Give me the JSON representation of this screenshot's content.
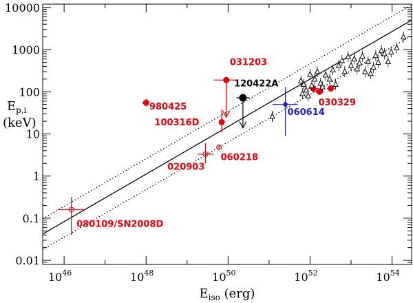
{
  "chart_data": {
    "type": "scatter",
    "x_scale": "log",
    "y_scale": "log",
    "xlim": [
      3e+45,
      3e+54
    ],
    "ylim": [
      0.008,
      12000
    ],
    "x_ticks": [
      {
        "base": "10",
        "exp": "46",
        "value": 1e+46
      },
      {
        "base": "10",
        "exp": "48",
        "value": 1e+48
      },
      {
        "base": "10",
        "exp": "50",
        "value": 1e+50
      },
      {
        "base": "10",
        "exp": "52",
        "value": 1e+52
      },
      {
        "base": "10",
        "exp": "54",
        "value": 1e+54
      }
    ],
    "y_ticks": [
      {
        "label": "0.01",
        "value": 0.01
      },
      {
        "label": "0.1",
        "value": 0.1
      },
      {
        "label": "1",
        "value": 1
      },
      {
        "label": "10",
        "value": 10
      },
      {
        "label": "100",
        "value": 100
      },
      {
        "label": "1000",
        "value": 1000
      },
      {
        "label": "10000",
        "value": 10000
      }
    ],
    "xlabel": {
      "main": "E",
      "sub": "iso",
      "unit": " (erg)"
    },
    "ylabel": {
      "main": "E",
      "sub": "p,i",
      "unit": "(keV)"
    },
    "colors": {
      "red": "#e8000b",
      "black": "#000000",
      "blue": "#2020c8"
    },
    "relation_lines": [
      {
        "style": "solid",
        "points": [
          [
            3e+45,
            0.042
          ],
          [
            3e+54,
            5000
          ]
        ]
      },
      {
        "style": "dotted",
        "points": [
          [
            3e+45,
            0.097
          ],
          [
            3e+54,
            11500
          ]
        ]
      },
      {
        "style": "dotted",
        "points": [
          [
            3e+45,
            0.018
          ],
          [
            3e+54,
            2150
          ]
        ]
      }
    ],
    "series": [
      {
        "color": "red",
        "points": [
          {
            "label": "980425",
            "x": 1e+48,
            "y": 55,
            "xerr": [
              8e+47,
              1.2e+48
            ],
            "yerr": [
              45,
              68
            ],
            "marker": "filled-circle"
          },
          {
            "label": "031203",
            "x": 9e+49,
            "y": 190,
            "xerr": [
              4.5e+49,
              1.8e+50
            ],
            "yerr": null,
            "upper_limit": 25,
            "marker": "filled-circle"
          },
          {
            "label": "100316D",
            "x": 7e+49,
            "y": 19,
            "xerr": null,
            "yerr": [
              11,
              38
            ],
            "marker": "filled-circle"
          },
          {
            "label": "020903",
            "x": 2.8e+49,
            "y": 3.3,
            "xerr": [
              1.8e+49,
              4.5e+49
            ],
            "yerr": [
              2.0,
              6.0
            ],
            "marker": "open-circle"
          },
          {
            "label": "060218",
            "x": 6e+49,
            "y": 4.8,
            "xerr": null,
            "yerr": [
              4.2,
              5.6
            ],
            "marker": "open-circle"
          },
          {
            "label": "080109/SN2008D",
            "x": 1.5e+46,
            "y": 0.16,
            "xerr": [
              7e+45,
              3.2e+46
            ],
            "yerr": [
              0.04,
              0.32
            ],
            "marker": "open-circle"
          },
          {
            "label": "030329",
            "x": 1.7e+52,
            "y": 100,
            "xerr": [
              1.3e+52,
              2.2e+52
            ],
            "yerr": [
              83,
              120
            ],
            "marker": "filled-circle"
          },
          {
            "label": "",
            "x": 1.2e+52,
            "y": 120,
            "xerr": [
              9e+51,
              1.6e+52
            ],
            "yerr": [
              95,
              150
            ],
            "marker": "filled-circle"
          },
          {
            "label": "",
            "x": 3.2e+52,
            "y": 120,
            "xerr": [
              2.6e+52,
              4e+52
            ],
            "yerr": [
              100,
              145
            ],
            "marker": "filled-circle"
          }
        ]
      },
      {
        "color": "black",
        "points": [
          {
            "label": "120422A",
            "x": 2.3e+50,
            "y": 72,
            "xerr": [
              1.6e+50,
              3.3e+50
            ],
            "yerr": null,
            "upper_limit": 14,
            "marker": "filled-circle"
          },
          {
            "label": "",
            "x": 1.2e+51,
            "y": 26,
            "xerr": null,
            "yerr": [
              20,
              34
            ],
            "marker": "triangle"
          }
        ]
      },
      {
        "color": "blue",
        "points": [
          {
            "label": "060614",
            "x": 2.5e+51,
            "y": 50,
            "xerr": [
              1.2e+51,
              5e+51
            ],
            "yerr": [
              9,
              130
            ],
            "marker": "filled-diamond"
          }
        ]
      },
      {
        "color": "black",
        "marker": "triangle",
        "points": [
          {
            "x": 6e+51,
            "y": 180
          },
          {
            "x": 7e+51,
            "y": 150
          },
          {
            "x": 6.5e+51,
            "y": 90
          },
          {
            "x": 8e+51,
            "y": 110
          },
          {
            "x": 9e+51,
            "y": 80
          },
          {
            "x": 1e+52,
            "y": 260
          },
          {
            "x": 1.1e+52,
            "y": 140
          },
          {
            "x": 1.3e+52,
            "y": 200
          },
          {
            "x": 1.5e+52,
            "y": 300
          },
          {
            "x": 1.8e+52,
            "y": 160
          },
          {
            "x": 2e+52,
            "y": 130
          },
          {
            "x": 2.4e+52,
            "y": 250
          },
          {
            "x": 3e+52,
            "y": 200
          },
          {
            "x": 3.6e+52,
            "y": 330
          },
          {
            "x": 4.2e+52,
            "y": 150
          },
          {
            "x": 5e+52,
            "y": 420
          },
          {
            "x": 6e+52,
            "y": 550
          },
          {
            "x": 7e+52,
            "y": 300
          },
          {
            "x": 8.5e+52,
            "y": 680
          },
          {
            "x": 1e+53,
            "y": 420
          },
          {
            "x": 1.2e+53,
            "y": 600
          },
          {
            "x": 1.4e+53,
            "y": 350
          },
          {
            "x": 1.6e+53,
            "y": 480
          },
          {
            "x": 1.9e+53,
            "y": 700
          },
          {
            "x": 2.2e+53,
            "y": 300
          },
          {
            "x": 2.6e+53,
            "y": 520
          },
          {
            "x": 3e+53,
            "y": 270
          },
          {
            "x": 3.5e+53,
            "y": 380
          },
          {
            "x": 4e+53,
            "y": 720
          },
          {
            "x": 4.6e+53,
            "y": 500
          },
          {
            "x": 5.5e+53,
            "y": 950
          },
          {
            "x": 6.5e+53,
            "y": 800
          },
          {
            "x": 8e+53,
            "y": 520
          },
          {
            "x": 9.5e+53,
            "y": 880
          },
          {
            "x": 1.3e+54,
            "y": 1100
          },
          {
            "x": 1.9e+54,
            "y": 2000
          }
        ]
      }
    ],
    "annotations": [
      {
        "text": "980425",
        "color": "red",
        "x": 1.2e+48,
        "y": 38
      },
      {
        "text": "031203",
        "color": "red",
        "x": 1.1e+50,
        "y": 430
      },
      {
        "text": "120422A",
        "color": "black",
        "x": 1.4e+50,
        "y": 135
      },
      {
        "text": "100316D",
        "color": "red",
        "x": 1.6e+48,
        "y": 16
      },
      {
        "text": "060614",
        "color": "blue",
        "x": 2.8e+51,
        "y": 28
      },
      {
        "text": "030329",
        "color": "red",
        "x": 1.6e+52,
        "y": 48
      },
      {
        "text": "020903",
        "color": "red",
        "x": 3.3e+48,
        "y": 1.4
      },
      {
        "text": "060218",
        "color": "red",
        "x": 6.6e+49,
        "y": 2.4
      },
      {
        "text": "080109/SN2008D",
        "color": "red",
        "x": 2e+46,
        "y": 0.062
      }
    ]
  }
}
